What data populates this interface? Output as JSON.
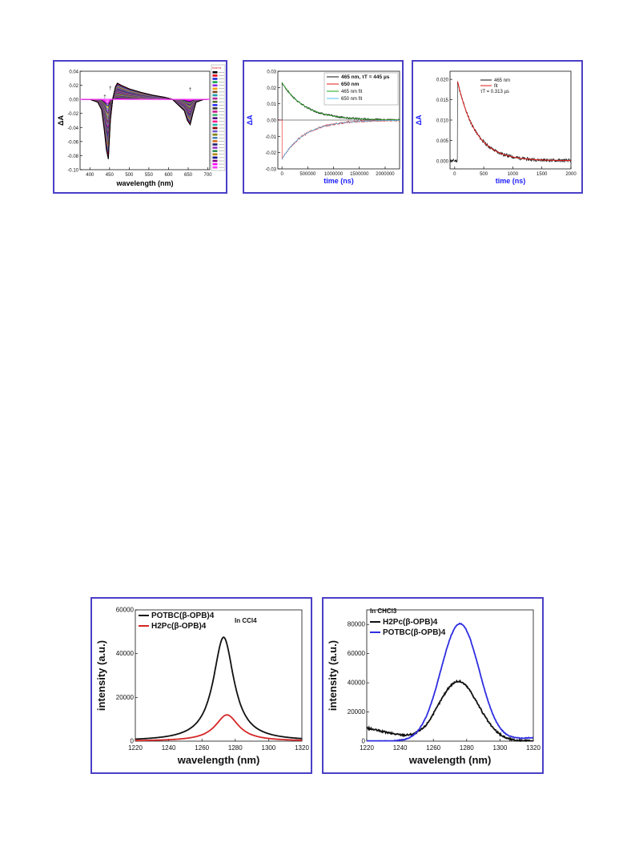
{
  "chart_data": [
    {
      "id": "p1",
      "type": "line",
      "xlabel": "wavelength (nm)",
      "ylabel": "ΔA",
      "xlim": [
        375,
        705
      ],
      "ylim": [
        -0.1,
        0.04
      ],
      "xticks": [
        400,
        450,
        500,
        550,
        600,
        650,
        700
      ],
      "yticks": [
        0.04,
        0.02,
        0.0,
        -0.02,
        -0.04,
        -0.06,
        -0.08,
        -0.1
      ],
      "ytick_labels": [
        "0.04",
        "0.02",
        "0.00",
        "-0.02",
        "-0.04",
        "-0.06",
        "-0.08",
        "-0.10"
      ],
      "legend_header": "time/ns",
      "legend_count": 30,
      "series_colors": [
        "#000000",
        "#e0001a",
        "#1f2bd6",
        "#0aa84a",
        "#8a2be2",
        "#f39c12",
        "#7a4a1e",
        "#1a9aa8",
        "#b0259a",
        "#556b2f",
        "#2b2bff",
        "#333333",
        "#c71585",
        "#3cb371",
        "#4b0082",
        "#ff1493",
        "#20b2aa",
        "#8b0000",
        "#6a5acd",
        "#808000",
        "#4682b4",
        "#d2691e",
        "#191970",
        "#9932cc",
        "#2e8b57",
        "#b8860b",
        "#000080",
        "#800080",
        "#ff00ff",
        "#ff33ff"
      ],
      "x": [
        380,
        400,
        420,
        430,
        437,
        442,
        447,
        452,
        458,
        465,
        470,
        480,
        500,
        530,
        560,
        590,
        610,
        625,
        640,
        648,
        655,
        662,
        670,
        690,
        700
      ],
      "reference_min": [
        0.0,
        0.0,
        -0.004,
        -0.015,
        -0.045,
        -0.072,
        -0.085,
        -0.03,
        0.0,
        0.018,
        0.023,
        0.02,
        0.015,
        0.01,
        0.006,
        0.003,
        0.0,
        -0.008,
        -0.016,
        -0.03,
        -0.036,
        -0.02,
        -0.004,
        0.0,
        0.0
      ],
      "annotations": [
        "†",
        "†",
        "†",
        "†"
      ]
    },
    {
      "id": "p2",
      "type": "line",
      "xlabel": "time (ns)",
      "ylabel": "ΔA",
      "xlim": [
        -80000,
        2280000
      ],
      "ylim": [
        -0.03,
        0.03
      ],
      "xticks": [
        0,
        500000,
        1000000,
        1500000,
        2000000
      ],
      "yticks": [
        0.03,
        0.02,
        0.01,
        0.0,
        -0.01,
        -0.02,
        -0.03
      ],
      "ytick_labels": [
        "0.03",
        "0.02",
        "0.01",
        "0.00",
        "-0.01",
        "-0.02",
        "-0.03"
      ],
      "series": [
        {
          "name": "465 nm, τT = 445 µs",
          "amplitude": 0.023,
          "tau": 445000,
          "color": "#111111",
          "fit": false
        },
        {
          "name": "650 nm",
          "amplitude": -0.024,
          "tau": 445000,
          "color": "#e01a1a",
          "fit": false
        },
        {
          "name": "465 nm fit",
          "amplitude": 0.023,
          "tau": 445000,
          "color": "#1aa81a",
          "fit": true
        },
        {
          "name": "650 nm fit",
          "amplitude": -0.024,
          "tau": 445000,
          "color": "#4fc3f7",
          "fit": true
        }
      ]
    },
    {
      "id": "p3",
      "type": "line",
      "xlabel": "time (ns)",
      "ylabel": "ΔA",
      "xlim": [
        -80,
        2000
      ],
      "ylim": [
        -0.002,
        0.022
      ],
      "xticks": [
        0,
        500,
        1000,
        1500,
        2000
      ],
      "yticks": [
        0.02,
        0.015,
        0.01,
        0.005,
        0.0
      ],
      "ytick_labels": [
        "0.020",
        "0.015",
        "0.010",
        "0.005",
        "0.000"
      ],
      "series": [
        {
          "name": "465 nm",
          "color": "#111111",
          "fit": false
        },
        {
          "name": "fit",
          "color": "#e01a1a",
          "fit": true
        }
      ],
      "note": "τT = 0.313 µs",
      "rise_time": 50,
      "amplitude": 0.0195,
      "tau": 313
    },
    {
      "id": "p4",
      "type": "line",
      "xlabel": "wavelength (nm)",
      "ylabel": "intensity (a.u.)",
      "xlim": [
        1220,
        1320
      ],
      "ylim": [
        0,
        60000
      ],
      "xticks": [
        1220,
        1240,
        1260,
        1280,
        1300,
        1320
      ],
      "yticks": [
        0,
        20000,
        40000,
        60000
      ],
      "note": "In CCl4",
      "series": [
        {
          "name": "POTBC(β-OPB)4",
          "color": "#111111",
          "peak": 47500,
          "center": 1273,
          "width": 7.5
        },
        {
          "name": "H2Pc(β-OPB)4",
          "color": "#d62728",
          "peak": 12000,
          "center": 1275,
          "width": 8.5
        }
      ]
    },
    {
      "id": "p5",
      "type": "line",
      "xlabel": "wavelength (nm)",
      "ylabel": "intensity (a.u.)",
      "xlim": [
        1220,
        1320
      ],
      "ylim": [
        0,
        90000
      ],
      "xticks": [
        1220,
        1240,
        1260,
        1280,
        1300,
        1320
      ],
      "yticks": [
        0,
        20000,
        40000,
        60000,
        80000
      ],
      "note": "In CHCl3",
      "series": [
        {
          "name": "H2Pc(β-OPB)4",
          "color": "#111111",
          "peak": 41000,
          "center": 1275,
          "width": 12
        },
        {
          "name": "POTBC(β-OPB)4",
          "color": "#2e2ee0",
          "peak": 80500,
          "center": 1276,
          "width": 11.5
        }
      ]
    }
  ]
}
